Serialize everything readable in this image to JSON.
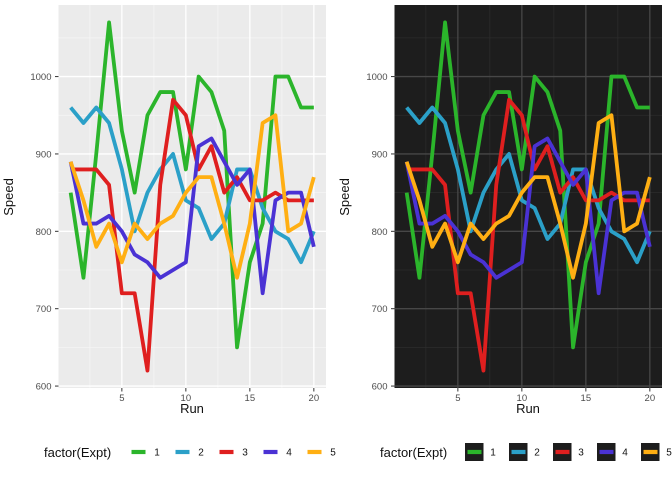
{
  "figure": {
    "background": "#ffffff",
    "panels": [
      {
        "id": "light",
        "label": "light-theme-panel",
        "theme": {
          "panel_bg": "#EBEBEB",
          "grid_major": "#FFFFFF",
          "grid_minor": "#F5F5F5",
          "tick_color": "#333333",
          "legend_key_bg": "none"
        }
      },
      {
        "id": "dark",
        "label": "dark-theme-panel",
        "theme": {
          "panel_bg": "#1D1D1D",
          "grid_major": "#474747",
          "grid_minor": "#2C2C2C",
          "tick_color": "#333333",
          "legend_key_bg": "#1D1D1D"
        }
      }
    ]
  },
  "axis": {
    "tick_text_color": "#4d4d4d",
    "title_color": "#111111"
  },
  "chart_data": {
    "type": "line",
    "title": "",
    "xlabel": "Run",
    "ylabel": "Speed",
    "legend_title": "factor(Expt)",
    "legend_position": "bottom",
    "grid": "on",
    "xlim": [
      0.05,
      20.95
    ],
    "ylim": [
      597.5,
      1092.5
    ],
    "x_ticks": [
      5,
      10,
      15,
      20
    ],
    "y_ticks": [
      600,
      700,
      800,
      900,
      1000
    ],
    "x_minor": [
      2.5,
      7.5,
      12.5,
      17.5
    ],
    "y_minor": [
      650,
      750,
      850,
      950,
      1050
    ],
    "x": [
      1,
      2,
      3,
      4,
      5,
      6,
      7,
      8,
      9,
      10,
      11,
      12,
      13,
      14,
      15,
      16,
      17,
      18,
      19,
      20
    ],
    "series": [
      {
        "name": "1",
        "color": "#2BB52B",
        "values": [
          850,
          740,
          900,
          1070,
          930,
          850,
          950,
          980,
          980,
          880,
          1000,
          980,
          930,
          650,
          760,
          810,
          1000,
          1000,
          960,
          960
        ]
      },
      {
        "name": "2",
        "color": "#2BA0C8",
        "values": [
          960,
          940,
          960,
          940,
          880,
          800,
          850,
          880,
          900,
          840,
          830,
          790,
          810,
          880,
          880,
          830,
          800,
          790,
          760,
          800
        ]
      },
      {
        "name": "3",
        "color": "#DF1F1F",
        "values": [
          880,
          880,
          880,
          860,
          720,
          720,
          620,
          860,
          970,
          950,
          880,
          910,
          850,
          870,
          840,
          840,
          850,
          840,
          840,
          840
        ]
      },
      {
        "name": "4",
        "color": "#4A32D4",
        "values": [
          890,
          810,
          810,
          820,
          800,
          770,
          760,
          740,
          750,
          760,
          910,
          920,
          890,
          860,
          880,
          720,
          840,
          850,
          850,
          780
        ]
      },
      {
        "name": "5",
        "color": "#FFAF13",
        "values": [
          890,
          840,
          780,
          810,
          760,
          810,
          790,
          810,
          820,
          850,
          870,
          870,
          810,
          740,
          810,
          940,
          950,
          800,
          810,
          870
        ]
      }
    ]
  }
}
